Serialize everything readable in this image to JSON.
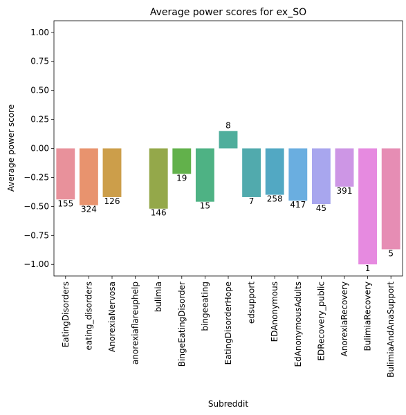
{
  "chart_data": {
    "type": "bar",
    "title": "Average power scores for ex_SO",
    "xlabel": "Subreddit",
    "ylabel": "Average power score",
    "ylim": [
      -1.1,
      1.1
    ],
    "yticks": [
      -1.0,
      -0.75,
      -0.5,
      -0.25,
      0.0,
      0.25,
      0.5,
      0.75,
      1.0
    ],
    "ytick_labels": [
      "−1.00",
      "−0.75",
      "−0.50",
      "−0.25",
      "0.00",
      "0.25",
      "0.50",
      "0.75",
      "1.00"
    ],
    "grid": false,
    "categories": [
      "EatingDisorders",
      "eating_disorders",
      "AnorexiaNervosa",
      "anorexiaflareuphelp",
      "bulimia",
      "BingeEatingDisorder",
      "bingeeating",
      "EatingDisorderHope",
      "edsupport",
      "EDAnonymous",
      "EdAnonymousAdults",
      "EDRecovery_public",
      "AnorexiaRecovery",
      "BulimiaRecovery",
      "BulimiaAndAnaSupport"
    ],
    "values": [
      -0.44,
      -0.49,
      -0.42,
      null,
      -0.52,
      -0.22,
      -0.46,
      0.15,
      -0.42,
      -0.4,
      -0.45,
      -0.48,
      -0.33,
      -1.0,
      -0.87
    ],
    "counts": [
      "155",
      "324",
      "126",
      "",
      "146",
      "19",
      "15",
      "8",
      "7",
      "258",
      "417",
      "45",
      "391",
      "1",
      "5"
    ],
    "colors": [
      "#e8919b",
      "#e8936e",
      "#cc9e4a",
      "#b5a44a",
      "#94a84a",
      "#62b14b",
      "#4eb284",
      "#4fae9c",
      "#51aaad",
      "#52a8c3",
      "#6aaee0",
      "#a8a6ee",
      "#cd96e5",
      "#e68ae0",
      "#e68db4"
    ]
  }
}
